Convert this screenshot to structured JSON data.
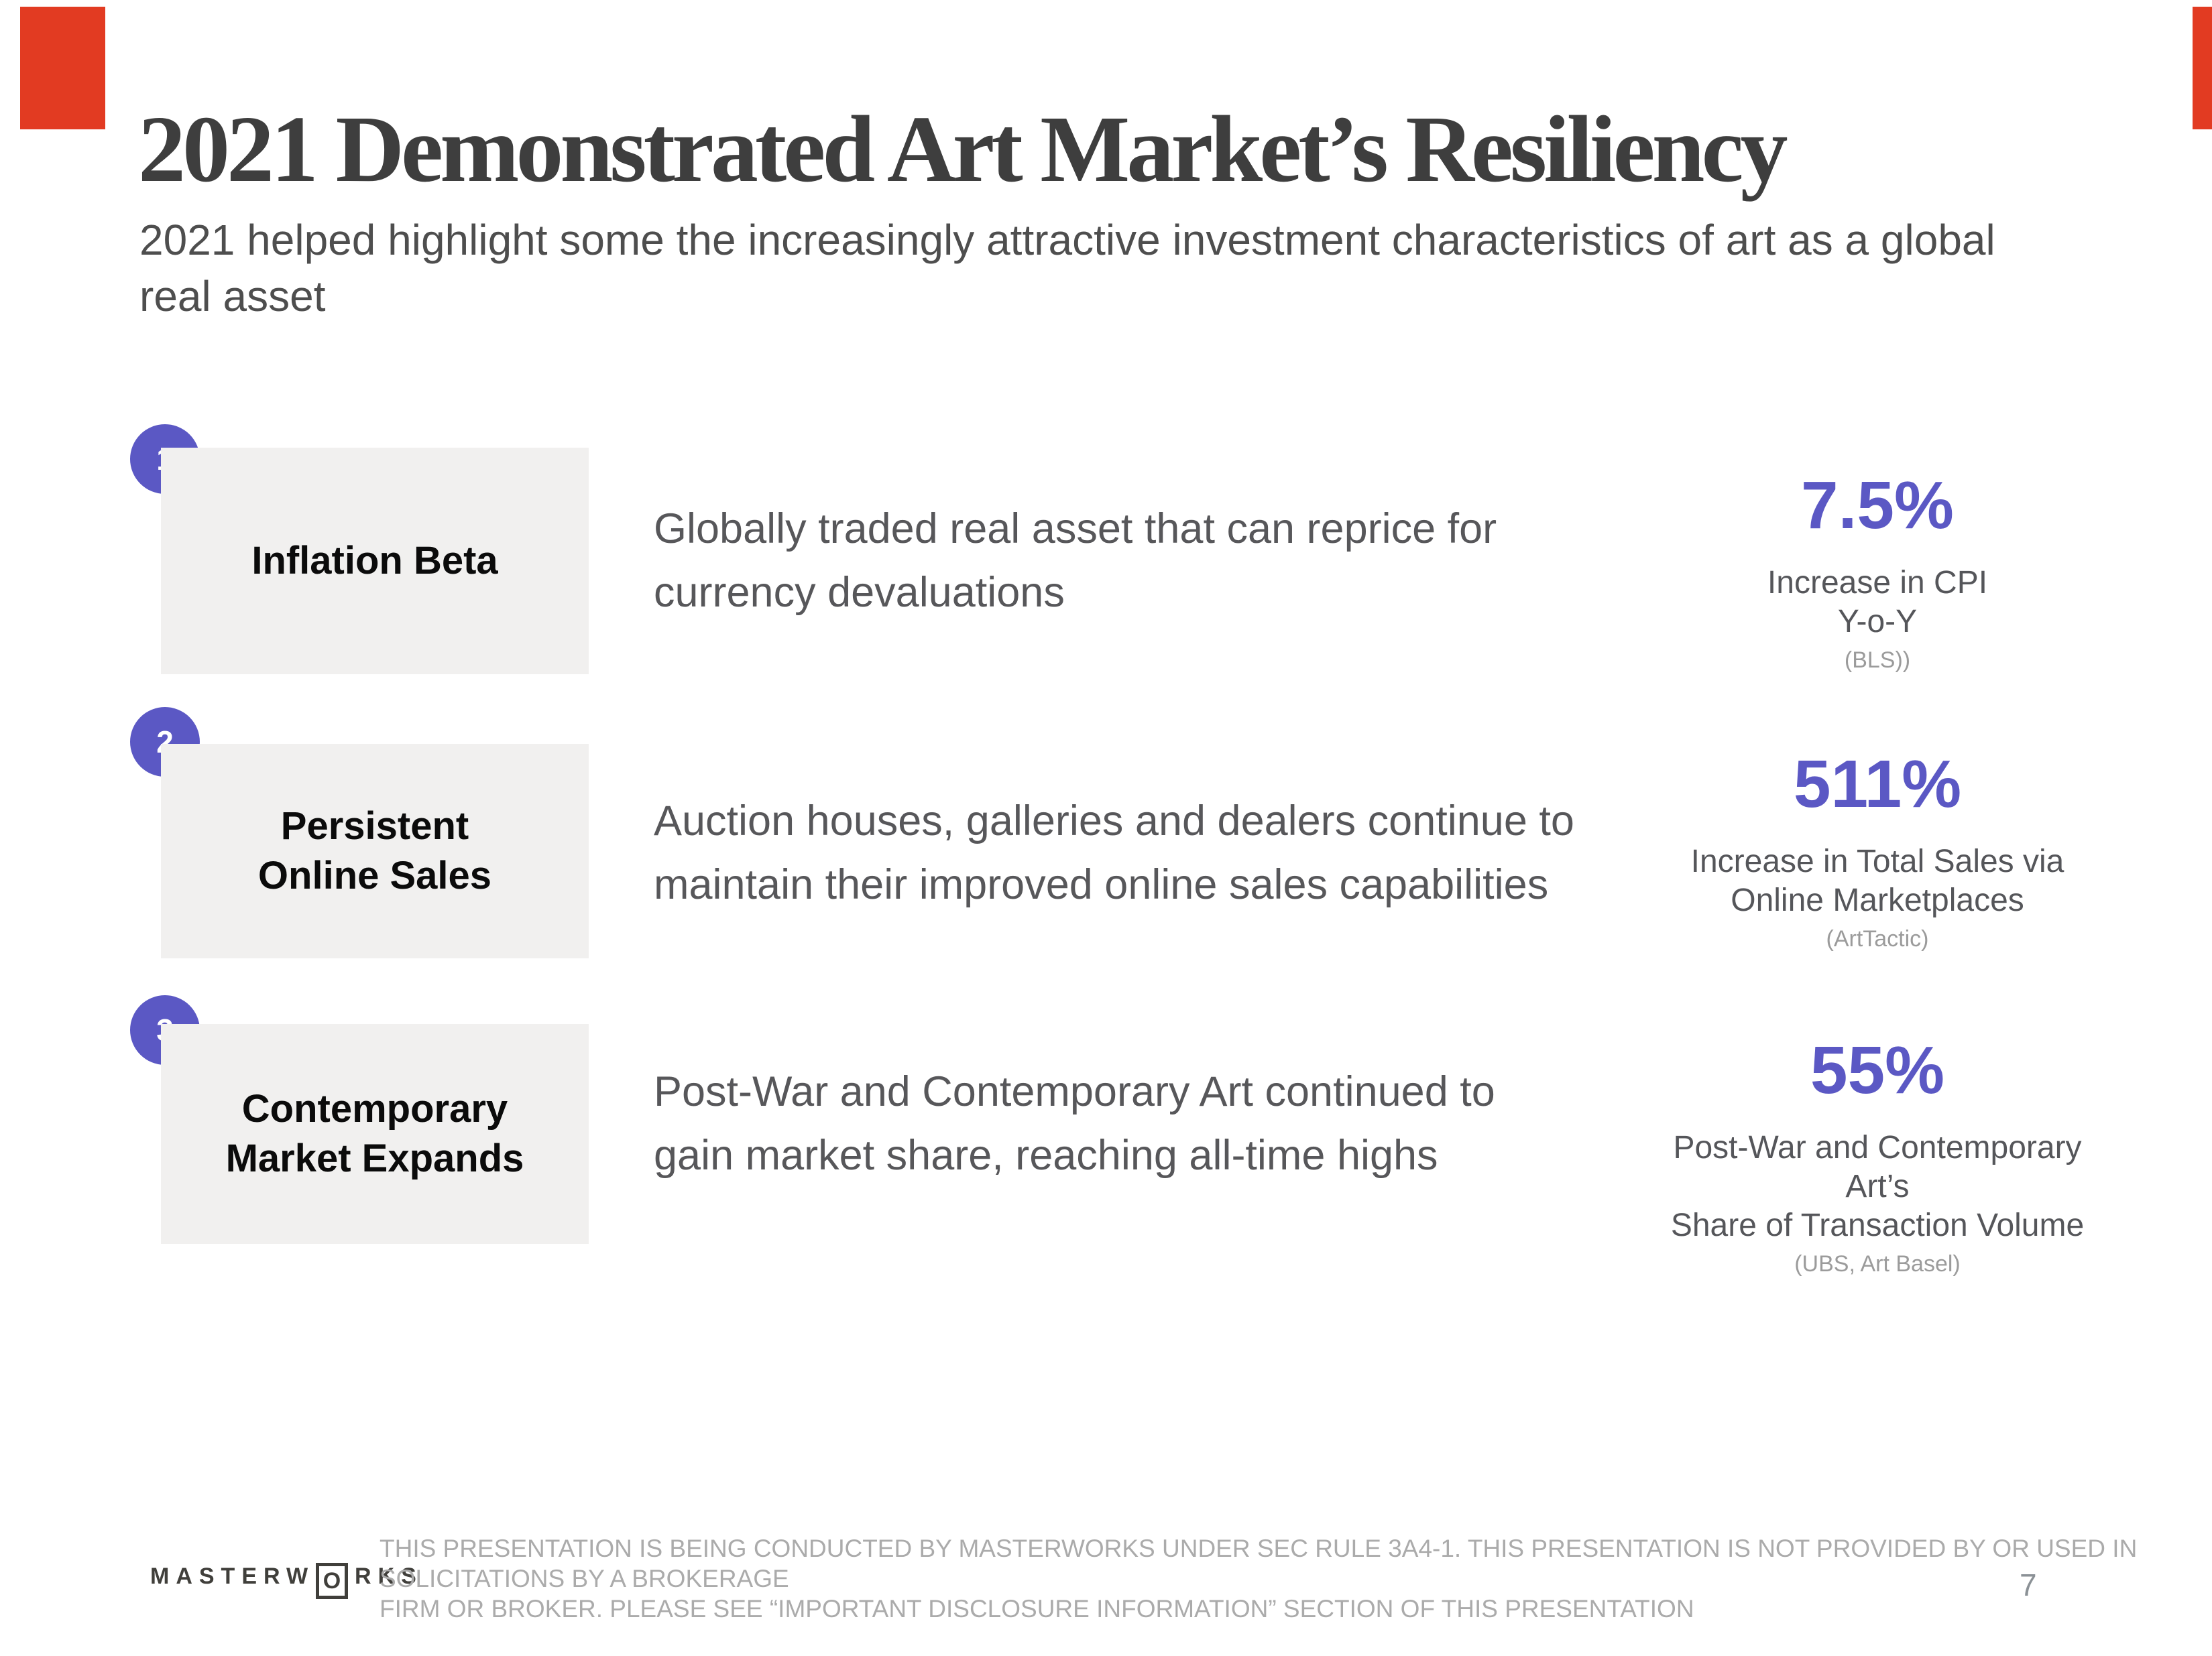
{
  "colors": {
    "accent": "#e23b22",
    "purple": "#5b58c4",
    "box-gray": "#f1f0ef",
    "title-color": "#3e3e3e",
    "body-color": "#57575a",
    "muted-color": "#9b9b9b",
    "disclaimer-color": "#ababab"
  },
  "slide": {
    "title": "2021 Demonstrated Art Market’s Resiliency",
    "subtitle_lines": [
      "2021 helped highlight some the increasingly attractive investment characteristics of art as a global",
      "real asset"
    ]
  },
  "rows": [
    {
      "number": "1",
      "label_lines": [
        "Inflation Beta"
      ],
      "description_lines": [
        "Globally traded real asset that can reprice for",
        "currency devaluations"
      ],
      "stat": {
        "value": "7.5%",
        "caption_lines": [
          "Increase in CPI",
          "Y-o-Y"
        ],
        "source": "(BLS))"
      }
    },
    {
      "number": "2",
      "label_lines": [
        "Persistent",
        "Online Sales"
      ],
      "description_lines": [
        "Auction houses, galleries and dealers continue to",
        "maintain their improved online sales capabilities"
      ],
      "stat": {
        "value": "511%",
        "caption_lines": [
          "Increase in Total Sales via",
          "Online Marketplaces"
        ],
        "source": "(ArtTactic)"
      }
    },
    {
      "number": "3",
      "label_lines": [
        "Contemporary",
        "Market Expands"
      ],
      "description_lines": [
        "Post-War and Contemporary Art continued to",
        "gain market share, reaching all-time highs"
      ],
      "stat": {
        "value": "55%",
        "caption_lines": [
          "Post-War and Contemporary Art’s",
          "Share of Transaction Volume"
        ],
        "source": "(UBS, Art Basel)"
      }
    }
  ],
  "footer": {
    "logo": {
      "prefix": "MASTERW",
      "boxed_letter": "O",
      "suffix": "RKS"
    },
    "disclaimer_lines": [
      "THIS PRESENTATION  IS BEING CONDUCTED BY MASTERWORKS UNDER SEC RULE 3A4-1. THIS PRESENTATION  IS NOT PROVIDED BY OR USED IN SOLICITATIONS BY A BROKERAGE",
      "FIRM OR BROKER. PLEASE SEE “IMPORTANT DISCLOSURE INFORMATION” SECTION OF THIS PRESENTATION"
    ],
    "page_number": "7"
  }
}
